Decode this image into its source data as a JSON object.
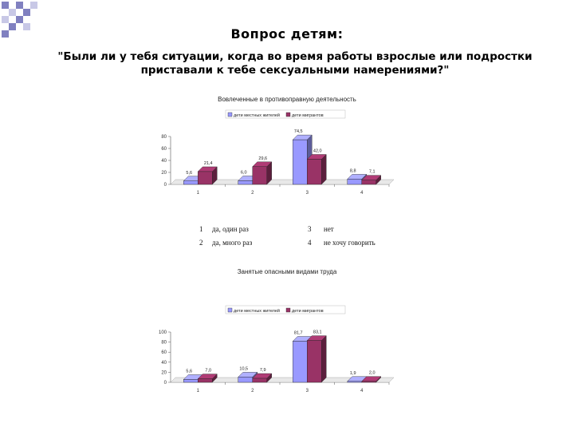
{
  "slide": {
    "title": "Вопрос детям:",
    "question": "\"Были ли у тебя ситуации, когда во время работы взрослые или подростки приставали к тебе  сексуальными намерениями?\""
  },
  "colors": {
    "series1": "#9999ff",
    "series2": "#993366",
    "deco_dark": "#8080c0",
    "deco_light": "#c8c8e6"
  },
  "answers": [
    {
      "num": "1",
      "text": "да, один раз"
    },
    {
      "num": "2",
      "text": "да, много раз"
    },
    {
      "num": "3",
      "text": "нет"
    },
    {
      "num": "4",
      "text": "не хочу говорить"
    }
  ],
  "chart_data": [
    {
      "type": "bar",
      "title": "Вовлеченные в противоправную деятельность",
      "categories": [
        "1",
        "2",
        "3",
        "4"
      ],
      "series": [
        {
          "name": "дети местных жителей",
          "values": [
            5.6,
            6.0,
            74.5,
            8.8
          ]
        },
        {
          "name": "дети мигрантов",
          "values": [
            21.4,
            29.6,
            42.0,
            7.1
          ]
        }
      ],
      "value_labels": [
        [
          "5,6",
          "6,0",
          "74,5",
          "8,8"
        ],
        [
          "21,4",
          "29,6",
          "42,0",
          "7,1"
        ]
      ],
      "yticks": [
        0,
        20,
        40,
        60,
        80
      ],
      "ylim": [
        0,
        80
      ],
      "legend": "top",
      "grid": false
    },
    {
      "type": "bar",
      "title": "Занятые опасными видами труда",
      "categories": [
        "1",
        "2",
        "3",
        "4"
      ],
      "series": [
        {
          "name": "дети местных жителей",
          "values": [
            5.6,
            10.5,
            81.7,
            1.9
          ]
        },
        {
          "name": "дети мигрантов",
          "values": [
            7.0,
            7.9,
            83.1,
            2.0
          ]
        }
      ],
      "value_labels": [
        [
          "5,6",
          "10,5",
          "81,7",
          "1,9"
        ],
        [
          "7,0",
          "7,9",
          "83,1",
          "2,0"
        ]
      ],
      "yticks": [
        0,
        20,
        40,
        60,
        80,
        100
      ],
      "ylim": [
        0,
        100
      ],
      "legend": "top",
      "grid": false
    }
  ]
}
